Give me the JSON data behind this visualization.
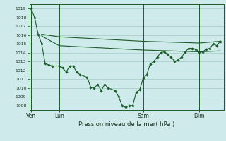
{
  "background_color": "#ceeaea",
  "grid_color": "#aacece",
  "line_color": "#1a5c28",
  "marker_color": "#1a5c28",
  "xlabel_text": "Pression niveau de la mer( hPa )",
  "ylim": [
    1007.5,
    1019.5
  ],
  "yticks": [
    1008,
    1009,
    1010,
    1011,
    1012,
    1013,
    1014,
    1015,
    1016,
    1017,
    1018,
    1019
  ],
  "xtick_labels": [
    "Ven",
    "Lun",
    "Sam",
    "Dim"
  ],
  "xtick_positions": [
    0,
    8,
    32,
    48
  ],
  "xlim": [
    -0.5,
    55
  ],
  "vlines_x": [
    0,
    8,
    32,
    48
  ],
  "series1_x": [
    0,
    1,
    2,
    3,
    4,
    5,
    6,
    8,
    9,
    10,
    11,
    12,
    13,
    14,
    16,
    17,
    18,
    19,
    20,
    21,
    22,
    24,
    25,
    26,
    27,
    28,
    29,
    30,
    31,
    32,
    33,
    34,
    35,
    36,
    37,
    38,
    39,
    40,
    41,
    42,
    43,
    44,
    45,
    46,
    47,
    48,
    49,
    50,
    51,
    52,
    53,
    54
  ],
  "series1_y": [
    1019.0,
    1018.0,
    1016.1,
    1015.0,
    1012.8,
    1012.6,
    1012.5,
    1012.5,
    1012.3,
    1011.8,
    1012.5,
    1012.5,
    1011.8,
    1011.5,
    1011.2,
    1010.1,
    1010.0,
    1010.4,
    1009.7,
    1010.4,
    1010.0,
    1009.7,
    1009.0,
    1008.0,
    1007.8,
    1008.0,
    1008.0,
    1009.5,
    1009.8,
    1011.1,
    1011.5,
    1012.7,
    1013.0,
    1013.5,
    1014.0,
    1014.1,
    1013.8,
    1013.5,
    1013.0,
    1013.2,
    1013.5,
    1014.1,
    1014.5,
    1014.5,
    1014.4,
    1014.1,
    1014.1,
    1014.4,
    1014.5,
    1015.0,
    1014.8,
    1015.3
  ],
  "series2_x": [
    3,
    8,
    32,
    48,
    54
  ],
  "series2_y": [
    1016.1,
    1015.8,
    1015.3,
    1015.1,
    1015.3
  ],
  "series3_x": [
    3,
    8,
    32,
    48,
    54
  ],
  "series3_y": [
    1015.9,
    1014.8,
    1014.3,
    1014.1,
    1014.2
  ]
}
